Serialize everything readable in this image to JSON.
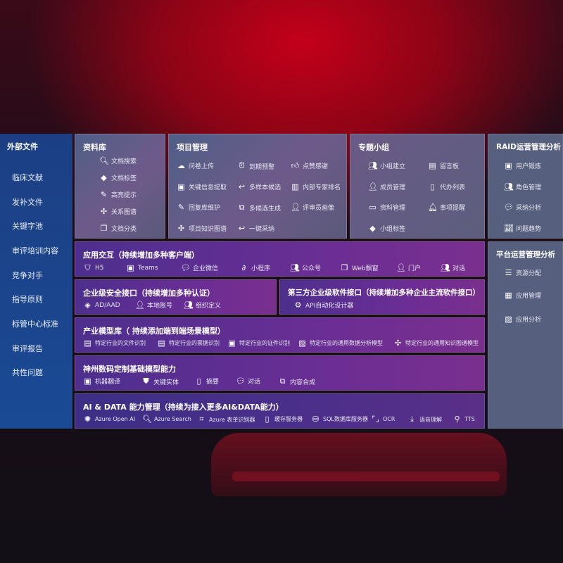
{
  "sidebar": {
    "title": "外部文件",
    "items": [
      "临床文献",
      "发补文件",
      "关键字池",
      "审评培训内容",
      "竞争对手",
      "指导原则",
      "标管中心标准",
      "审评报告",
      "共性问题"
    ]
  },
  "docs": {
    "title": "资料库",
    "items": [
      {
        "icon": "doc-search-icon",
        "label": "文档搜索"
      },
      {
        "icon": "tag-icon",
        "label": "文档标签"
      },
      {
        "icon": "pen-icon",
        "label": "高亮提示"
      },
      {
        "icon": "graph-icon",
        "label": "关系图谱"
      },
      {
        "icon": "doc-stack-icon",
        "label": "文档分类"
      }
    ]
  },
  "project": {
    "title": "项目管理",
    "items": [
      {
        "icon": "cloud-upload-icon",
        "label": "问卷上传"
      },
      {
        "icon": "alarm-icon",
        "label": "到期预警"
      },
      {
        "icon": "thumbs-up-icon",
        "label": "点赞感谢"
      },
      {
        "icon": "extract-icon",
        "label": "关键信息提取"
      },
      {
        "icon": "reply-icon",
        "label": "多样本候选"
      },
      {
        "icon": "ranking-icon",
        "label": "内部专家排名"
      },
      {
        "icon": "edit-icon",
        "label": "回复库维护"
      },
      {
        "icon": "puzzle-icon",
        "label": "多候选生成"
      },
      {
        "icon": "user-icon",
        "label": "评审员画像"
      },
      {
        "icon": "graph-icon",
        "label": "项目知识图谱"
      },
      {
        "icon": "reply-icon",
        "label": "一键采纳"
      }
    ]
  },
  "group": {
    "title": "专题小组",
    "items": [
      {
        "icon": "users-icon",
        "label": "小组建立"
      },
      {
        "icon": "bbs-icon",
        "label": "留言板"
      },
      {
        "icon": "user-add-icon",
        "label": "成员管理"
      },
      {
        "icon": "clipboard-icon",
        "label": "代办列表"
      },
      {
        "icon": "folder-icon",
        "label": "资料管理"
      },
      {
        "icon": "bell-icon",
        "label": "事项提醒"
      },
      {
        "icon": "tag-icon",
        "label": "小组标签"
      }
    ]
  },
  "raid": {
    "title": "RAID运营管理分析",
    "items": [
      {
        "icon": "id-card-icon",
        "label": "用户锻炼"
      },
      {
        "icon": "users-icon",
        "label": "角色管理"
      },
      {
        "icon": "qa-icon",
        "label": "采纳分析"
      },
      {
        "icon": "trend-icon",
        "label": "问题趋势"
      }
    ]
  },
  "platform": {
    "title": "平台运营管理分析",
    "items": [
      {
        "icon": "checklist-icon",
        "label": "资源分配"
      },
      {
        "icon": "apps-icon",
        "label": "应用管理"
      },
      {
        "icon": "chart-icon",
        "label": "应用分析"
      }
    ]
  },
  "interaction": {
    "title": "应用交互（持续增加多种客户端）",
    "items": [
      {
        "icon": "html5-icon",
        "label": "H5"
      },
      {
        "icon": "teams-icon",
        "label": "Teams"
      },
      {
        "icon": "wechat-icon",
        "label": "企业微信"
      },
      {
        "icon": "miniprogram-icon",
        "label": "小程序"
      },
      {
        "icon": "users-icon",
        "label": "公众号"
      },
      {
        "icon": "window-icon",
        "label": "Web飘窗"
      },
      {
        "icon": "portal-icon",
        "label": "门户"
      },
      {
        "icon": "chat-users-icon",
        "label": "对话"
      }
    ]
  },
  "security": {
    "title": "企业级安全接口（持续增加多种认证）",
    "items": [
      {
        "icon": "ad-icon",
        "label": "AD/AAD"
      },
      {
        "icon": "local-user-icon",
        "label": "本地账号"
      },
      {
        "icon": "org-icon",
        "label": "组织定义"
      }
    ]
  },
  "thirdparty": {
    "title": "第三方企业级软件接口（持续增加多种企业主流软件接口）",
    "items": [
      {
        "icon": "gear-icon",
        "label": "API自动化设计器"
      }
    ]
  },
  "industry": {
    "title": "产业模型库（ 持续添加端到端场景模型）",
    "items": [
      {
        "icon": "file-icon",
        "label": "特定行业的文件识别"
      },
      {
        "icon": "receipt-icon",
        "label": "特定行业的票据识别"
      },
      {
        "icon": "id-card-icon",
        "label": "特定行业的证件识别"
      },
      {
        "icon": "image-chart-icon",
        "label": "特定行业的通用数据分析模型"
      },
      {
        "icon": "graph-icon",
        "label": "特定行业的通用知识图谱模型"
      }
    ]
  },
  "base": {
    "title": "神州数码定制基础模型能力",
    "items": [
      {
        "icon": "translate-icon",
        "label": "机器翻译"
      },
      {
        "icon": "entity-icon",
        "label": "关键实体"
      },
      {
        "icon": "summary-icon",
        "label": "摘要"
      },
      {
        "icon": "chat-icon",
        "label": "对话"
      },
      {
        "icon": "compose-icon",
        "label": "内容合成"
      }
    ]
  },
  "aidata": {
    "title": "AI & DATA 能力管理（持续为接入更多AI&DATA能力）",
    "items": [
      {
        "icon": "openai-icon",
        "label": "Azure Open AI"
      },
      {
        "icon": "search-doc-icon",
        "label": "Azure Search"
      },
      {
        "icon": "form-icon",
        "label": "Azure 表单识别器"
      },
      {
        "icon": "cache-icon",
        "label": "缓存服务器"
      },
      {
        "icon": "database-icon",
        "label": "SQL数据库服务器"
      },
      {
        "icon": "ocr-icon",
        "label": "OCR"
      },
      {
        "icon": "download-icon",
        "label": "语音理解"
      },
      {
        "icon": "tts-icon",
        "label": "TTS"
      }
    ]
  }
}
